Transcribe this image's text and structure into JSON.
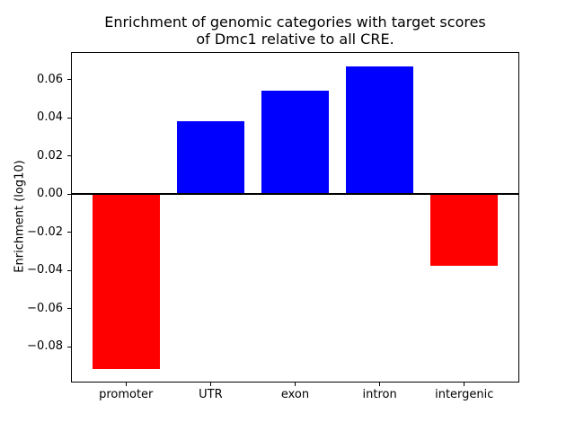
{
  "figure": {
    "title_lines": [
      "Enrichment of genomic categories with target scores",
      "of Dmc1 relative to all CRE."
    ],
    "ylabel": "Enrichment (log10)",
    "background_color": "#ffffff",
    "frame_color": "#000000"
  },
  "chart_data": {
    "type": "bar",
    "title": "Enrichment of genomic categories with target scores of Dmc1 relative to all CRE.",
    "xlabel": "",
    "ylabel": "Enrichment (log10)",
    "categories": [
      "promoter",
      "UTR",
      "exon",
      "intron",
      "intergenic"
    ],
    "values": [
      -0.0914,
      0.0385,
      0.0541,
      0.0671,
      -0.0377
    ],
    "bar_colors": [
      "#ff0000",
      "#0000ff",
      "#0000ff",
      "#0000ff",
      "#ff0000"
    ],
    "positive_color": "#0000ff",
    "negative_color": "#ff0000",
    "yticks": [
      0.06,
      0.04,
      0.02,
      0.0,
      -0.02,
      -0.04,
      -0.06,
      -0.08
    ],
    "ytick_labels": [
      "0.06",
      "0.04",
      "0.02",
      "0.00",
      "−0.02",
      "−0.04",
      "−0.06",
      "−0.08"
    ],
    "ylim": [
      -0.0982,
      0.0741
    ],
    "xlim": [
      -0.64,
      4.64
    ],
    "bar_width": 0.8,
    "grid": false,
    "legend_position": "none",
    "zero_line": true
  }
}
